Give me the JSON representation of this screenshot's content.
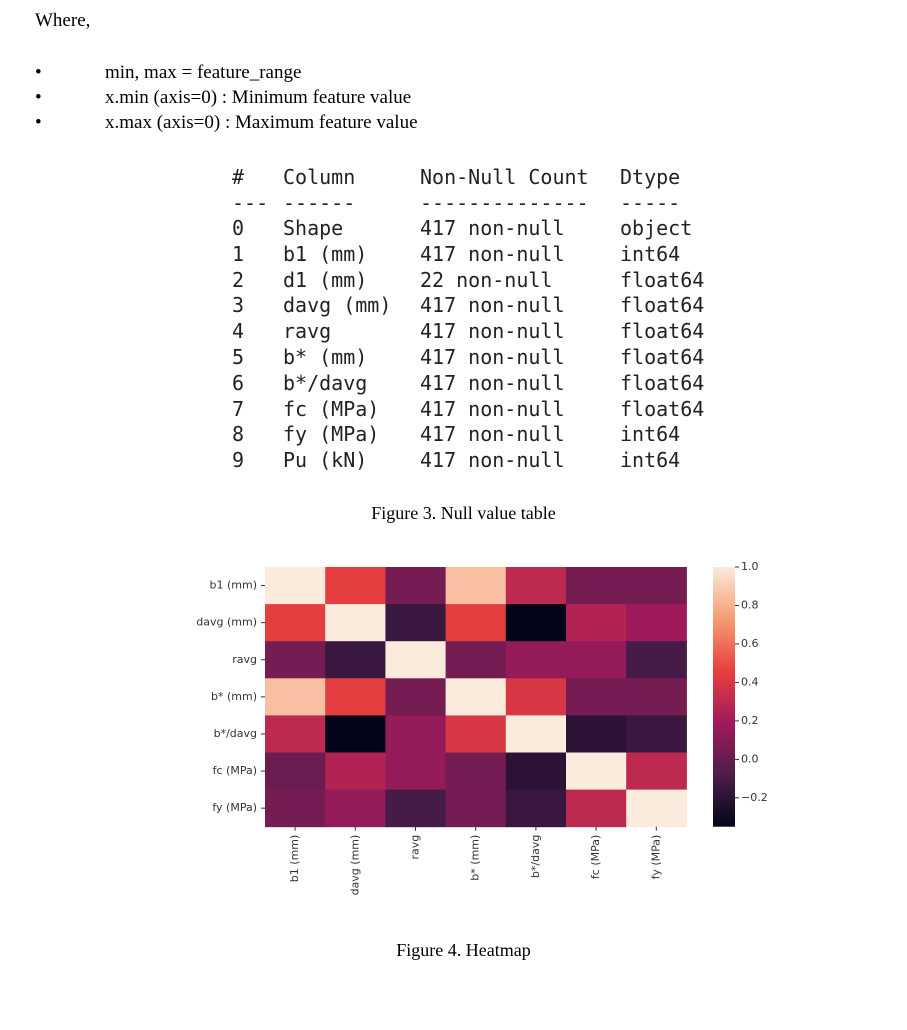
{
  "intro": "Where,",
  "bullets": [
    "min, max = feature_range",
    "x.min (axis=0) : Minimum feature value",
    "x.max (axis=0) : Maximum feature value"
  ],
  "table": {
    "header": [
      "#",
      "Column",
      "Non-Null Count",
      "Dtype"
    ],
    "rule": [
      "---",
      "------",
      "--------------",
      "-----"
    ],
    "rows": [
      [
        "0",
        "Shape",
        "417 non-null",
        "object"
      ],
      [
        "1",
        "b1 (mm)",
        "417 non-null",
        "int64"
      ],
      [
        "2",
        "d1 (mm)",
        "22 non-null",
        "float64"
      ],
      [
        "3",
        "davg (mm)",
        "417 non-null",
        "float64"
      ],
      [
        "4",
        "ravg",
        "417 non-null",
        "float64"
      ],
      [
        "5",
        "b* (mm)",
        "417 non-null",
        "float64"
      ],
      [
        "6",
        "b*/davg",
        "417 non-null",
        "float64"
      ],
      [
        "7",
        "fc (MPa)",
        "417 non-null",
        "float64"
      ],
      [
        "8",
        "fy (MPa)",
        "417 non-null",
        "int64"
      ],
      [
        "9",
        "Pu (kN)",
        "417 non-null",
        "int64"
      ]
    ]
  },
  "caption_table": "Figure 3. Null value table",
  "caption_heatmap": "Figure 4. Heatmap",
  "chart_data": {
    "type": "heatmap",
    "categories": [
      "b1 (mm)",
      "davg (mm)",
      "ravg",
      "b* (mm)",
      "b*/davg",
      "fc (MPa)",
      "fy (MPa)"
    ],
    "y_categories": [
      "b1 (mm)",
      "davg (mm)",
      "ravg",
      "b* (mm)",
      "b*/davg",
      "fc (MPa)",
      "fy (MPa)"
    ],
    "values": [
      [
        1,
        0.45,
        0.05,
        0.85,
        0.3,
        0.05,
        0.05
      ],
      [
        0.45,
        1,
        -0.15,
        0.45,
        -0.35,
        0.25,
        0.18
      ],
      [
        0.05,
        -0.15,
        1,
        0.05,
        0.15,
        0.15,
        -0.1
      ],
      [
        0.85,
        0.45,
        0.05,
        1,
        0.4,
        0.05,
        0.05
      ],
      [
        0.3,
        -0.35,
        0.15,
        0.4,
        1,
        -0.2,
        -0.15
      ],
      [
        0.02,
        0.25,
        0.15,
        0.05,
        -0.2,
        1,
        0.3
      ],
      [
        0.05,
        0.15,
        -0.1,
        0.05,
        -0.15,
        0.3,
        1
      ]
    ],
    "zlim": [
      -0.35,
      1.0
    ],
    "zticks": [
      {
        "value": -0.2,
        "label": "−0.2"
      },
      {
        "value": 0,
        "label": "0.0"
      },
      0.2,
      0.4,
      0.6,
      0.8,
      {
        "value": 1.0,
        "label": "1.0"
      }
    ],
    "colormap": [
      "#03051a",
      "#4c1d4b",
      "#a11a5b",
      "#e83f3f",
      "#f69c73",
      "#faebdd"
    ]
  }
}
